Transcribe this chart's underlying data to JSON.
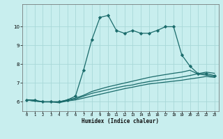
{
  "xlabel": "Humidex (Indice chaleur)",
  "bg_color": "#c8eeee",
  "grid_color": "#a8d8d8",
  "line_color": "#1a6b6b",
  "xlim": [
    -0.5,
    23.5
  ],
  "ylim": [
    5.5,
    11.2
  ],
  "xticks": [
    0,
    1,
    2,
    3,
    4,
    5,
    6,
    7,
    8,
    9,
    10,
    11,
    12,
    13,
    14,
    15,
    16,
    17,
    18,
    19,
    20,
    21,
    22,
    23
  ],
  "yticks": [
    6,
    7,
    8,
    9,
    10
  ],
  "series": [
    {
      "x": [
        0,
        1,
        2,
        3,
        4,
        5,
        6,
        7,
        8,
        9,
        10,
        11,
        12,
        13,
        14,
        15,
        16,
        17,
        18,
        19,
        20,
        21,
        22,
        23
      ],
      "y": [
        6.1,
        6.1,
        6.0,
        6.0,
        6.0,
        6.1,
        6.3,
        7.7,
        9.3,
        10.5,
        10.6,
        9.8,
        9.65,
        9.8,
        9.65,
        9.65,
        9.8,
        10.0,
        10.0,
        8.5,
        7.9,
        7.5,
        7.5,
        7.4
      ],
      "marker": "D",
      "ms": 2.2
    },
    {
      "x": [
        0,
        1,
        2,
        3,
        4,
        5,
        6,
        7,
        8,
        9,
        10,
        11,
        12,
        13,
        14,
        15,
        16,
        17,
        18,
        19,
        20,
        21,
        22,
        23
      ],
      "y": [
        6.1,
        6.05,
        6.0,
        6.0,
        6.0,
        6.05,
        6.1,
        6.2,
        6.3,
        6.4,
        6.5,
        6.6,
        6.7,
        6.78,
        6.87,
        6.95,
        7.0,
        7.05,
        7.1,
        7.15,
        7.22,
        7.28,
        7.35,
        7.3
      ],
      "marker": null,
      "ms": 0
    },
    {
      "x": [
        0,
        1,
        2,
        3,
        4,
        5,
        6,
        7,
        8,
        9,
        10,
        11,
        12,
        13,
        14,
        15,
        16,
        17,
        18,
        19,
        20,
        21,
        22,
        23
      ],
      "y": [
        6.1,
        6.05,
        6.0,
        6.0,
        6.0,
        6.1,
        6.2,
        6.35,
        6.55,
        6.68,
        6.8,
        6.9,
        7.0,
        7.1,
        7.2,
        7.3,
        7.38,
        7.45,
        7.52,
        7.58,
        7.68,
        7.48,
        7.42,
        7.35
      ],
      "marker": null,
      "ms": 0
    },
    {
      "x": [
        0,
        1,
        2,
        3,
        4,
        5,
        6,
        7,
        8,
        9,
        10,
        11,
        12,
        13,
        14,
        15,
        16,
        17,
        18,
        19,
        20,
        21,
        22,
        23
      ],
      "y": [
        6.1,
        6.05,
        6.0,
        6.0,
        5.95,
        6.05,
        6.15,
        6.3,
        6.45,
        6.55,
        6.65,
        6.75,
        6.84,
        6.9,
        7.0,
        7.08,
        7.14,
        7.2,
        7.25,
        7.32,
        7.4,
        7.5,
        7.58,
        7.52
      ],
      "marker": null,
      "ms": 0
    }
  ]
}
